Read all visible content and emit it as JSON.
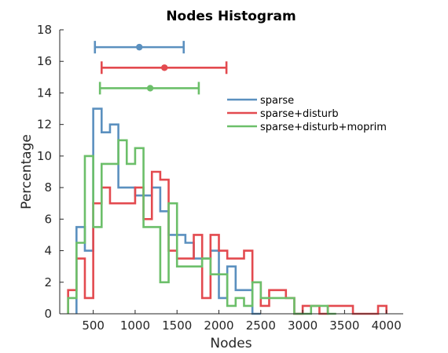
{
  "chart_data": {
    "type": "histogram",
    "title": "Nodes Histogram",
    "xlabel": "Nodes",
    "ylabel": "Percentage",
    "xlim": [
      100,
      4200
    ],
    "ylim": [
      0,
      18
    ],
    "xticks": [
      500,
      1000,
      1500,
      2000,
      2500,
      3000,
      3500,
      4000
    ],
    "yticks": [
      0,
      2,
      4,
      6,
      8,
      10,
      12,
      14,
      16,
      18
    ],
    "grid": false,
    "legend_position": "right",
    "series": [
      {
        "name": "sparse",
        "color": "#5b90bf",
        "bins": [
          [
            300,
            400,
            5.5
          ],
          [
            400,
            500,
            4
          ],
          [
            500,
            600,
            13
          ],
          [
            600,
            700,
            11.5
          ],
          [
            700,
            800,
            12
          ],
          [
            800,
            900,
            8
          ],
          [
            900,
            1000,
            8
          ],
          [
            1000,
            1100,
            7.5
          ],
          [
            1100,
            1200,
            7.5
          ],
          [
            1200,
            1300,
            8
          ],
          [
            1300,
            1400,
            6.5
          ],
          [
            1400,
            1500,
            5
          ],
          [
            1500,
            1600,
            5
          ],
          [
            1600,
            1700,
            4.5
          ],
          [
            1700,
            1800,
            3.5
          ],
          [
            1800,
            1900,
            3.5
          ],
          [
            1900,
            2000,
            4
          ],
          [
            2000,
            2100,
            1
          ],
          [
            2100,
            2200,
            3
          ],
          [
            2200,
            2300,
            1.5
          ],
          [
            2300,
            2400,
            1.5
          ],
          [
            2400,
            2500,
            0
          ]
        ],
        "errorbar": {
          "y": 16.9,
          "mean": 1050,
          "lower": 520,
          "upper": 1580
        }
      },
      {
        "name": "sparse+disturb",
        "color": "#e34a4f",
        "bins": [
          [
            200,
            300,
            1.5
          ],
          [
            300,
            400,
            3.5
          ],
          [
            400,
            500,
            1
          ],
          [
            500,
            600,
            7
          ],
          [
            600,
            700,
            8
          ],
          [
            700,
            800,
            7
          ],
          [
            800,
            900,
            7
          ],
          [
            900,
            1000,
            7
          ],
          [
            1000,
            1100,
            8
          ],
          [
            1100,
            1200,
            6
          ],
          [
            1200,
            1300,
            9
          ],
          [
            1300,
            1400,
            8.5
          ],
          [
            1400,
            1500,
            4
          ],
          [
            1500,
            1600,
            3.5
          ],
          [
            1600,
            1700,
            3.5
          ],
          [
            1700,
            1800,
            5
          ],
          [
            1800,
            1900,
            1
          ],
          [
            1900,
            2000,
            5
          ],
          [
            2000,
            2100,
            4
          ],
          [
            2100,
            2200,
            3.5
          ],
          [
            2200,
            2300,
            3.5
          ],
          [
            2300,
            2400,
            4
          ],
          [
            2400,
            2500,
            2
          ],
          [
            2500,
            2600,
            0.5
          ],
          [
            2600,
            2700,
            1.5
          ],
          [
            2700,
            2800,
            1.5
          ],
          [
            2800,
            2900,
            1
          ],
          [
            2900,
            3000,
            0
          ],
          [
            3000,
            3100,
            0.5
          ],
          [
            3100,
            3200,
            0.5
          ],
          [
            3200,
            3300,
            0
          ],
          [
            3300,
            3400,
            0.5
          ],
          [
            3400,
            3500,
            0.5
          ],
          [
            3500,
            3600,
            0.5
          ],
          [
            3600,
            3700,
            0
          ],
          [
            3700,
            3800,
            0
          ],
          [
            3800,
            3900,
            0
          ],
          [
            3900,
            4000,
            0.5
          ]
        ],
        "errorbar": {
          "y": 15.6,
          "mean": 1350,
          "lower": 600,
          "upper": 2090
        }
      },
      {
        "name": "sparse+disturb+moprim",
        "color": "#6cbf6a",
        "bins": [
          [
            200,
            300,
            1
          ],
          [
            300,
            400,
            4.5
          ],
          [
            400,
            500,
            10
          ],
          [
            500,
            600,
            5.5
          ],
          [
            600,
            700,
            9.5
          ],
          [
            700,
            800,
            9.5
          ],
          [
            800,
            900,
            11
          ],
          [
            900,
            1000,
            9.5
          ],
          [
            1000,
            1100,
            10.5
          ],
          [
            1100,
            1200,
            5.5
          ],
          [
            1200,
            1300,
            5.5
          ],
          [
            1300,
            1400,
            2
          ],
          [
            1400,
            1500,
            7
          ],
          [
            1500,
            1600,
            3
          ],
          [
            1600,
            1700,
            3
          ],
          [
            1700,
            1800,
            3
          ],
          [
            1800,
            1900,
            3.5
          ],
          [
            1900,
            2000,
            2.5
          ],
          [
            2000,
            2100,
            2.5
          ],
          [
            2100,
            2200,
            0.5
          ],
          [
            2200,
            2300,
            1
          ],
          [
            2300,
            2400,
            0.5
          ],
          [
            2400,
            2500,
            2
          ],
          [
            2500,
            2600,
            1
          ],
          [
            2600,
            2700,
            1
          ],
          [
            2700,
            2800,
            1
          ],
          [
            2800,
            2900,
            1
          ],
          [
            2900,
            3000,
            0
          ],
          [
            3000,
            3100,
            0
          ],
          [
            3100,
            3200,
            0.5
          ],
          [
            3200,
            3300,
            0.5
          ],
          [
            3300,
            3400,
            0
          ]
        ],
        "errorbar": {
          "y": 14.3,
          "mean": 1180,
          "lower": 580,
          "upper": 1760
        }
      }
    ]
  }
}
